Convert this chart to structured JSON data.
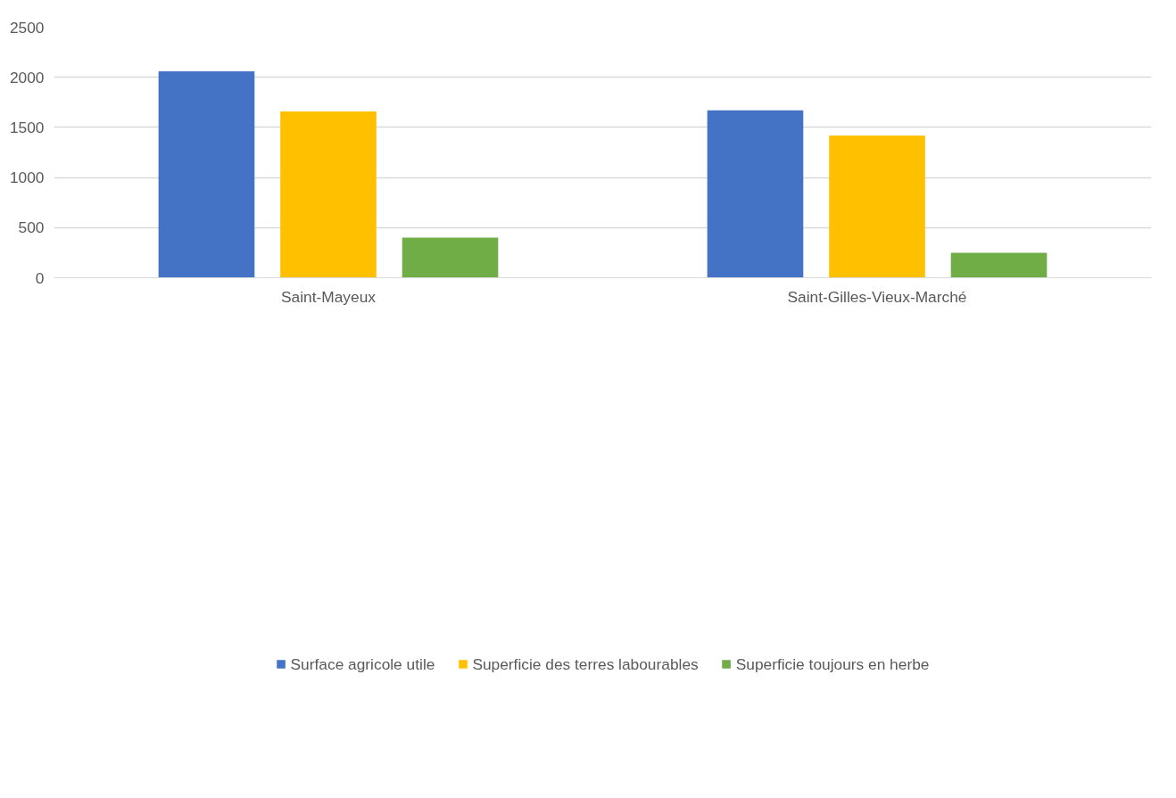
{
  "chart_data": {
    "type": "bar",
    "categories": [
      "Saint-Mayeux",
      "Saint-Gilles-Vieux-Marché"
    ],
    "series": [
      {
        "name": "Surface agricole utile",
        "color": "#4472c4",
        "values": [
          2060,
          1670
        ]
      },
      {
        "name": "Superficie des terres labourables",
        "color": "#ffc000",
        "values": [
          1660,
          1420
        ]
      },
      {
        "name": "Superficie toujours en herbe",
        "color": "#70ad47",
        "values": [
          400,
          250
        ]
      }
    ],
    "ylim": [
      0,
      2500
    ],
    "yticks": [
      0,
      500,
      1000,
      1500,
      2000,
      2500
    ],
    "grid": "y",
    "legend": "bottom"
  }
}
